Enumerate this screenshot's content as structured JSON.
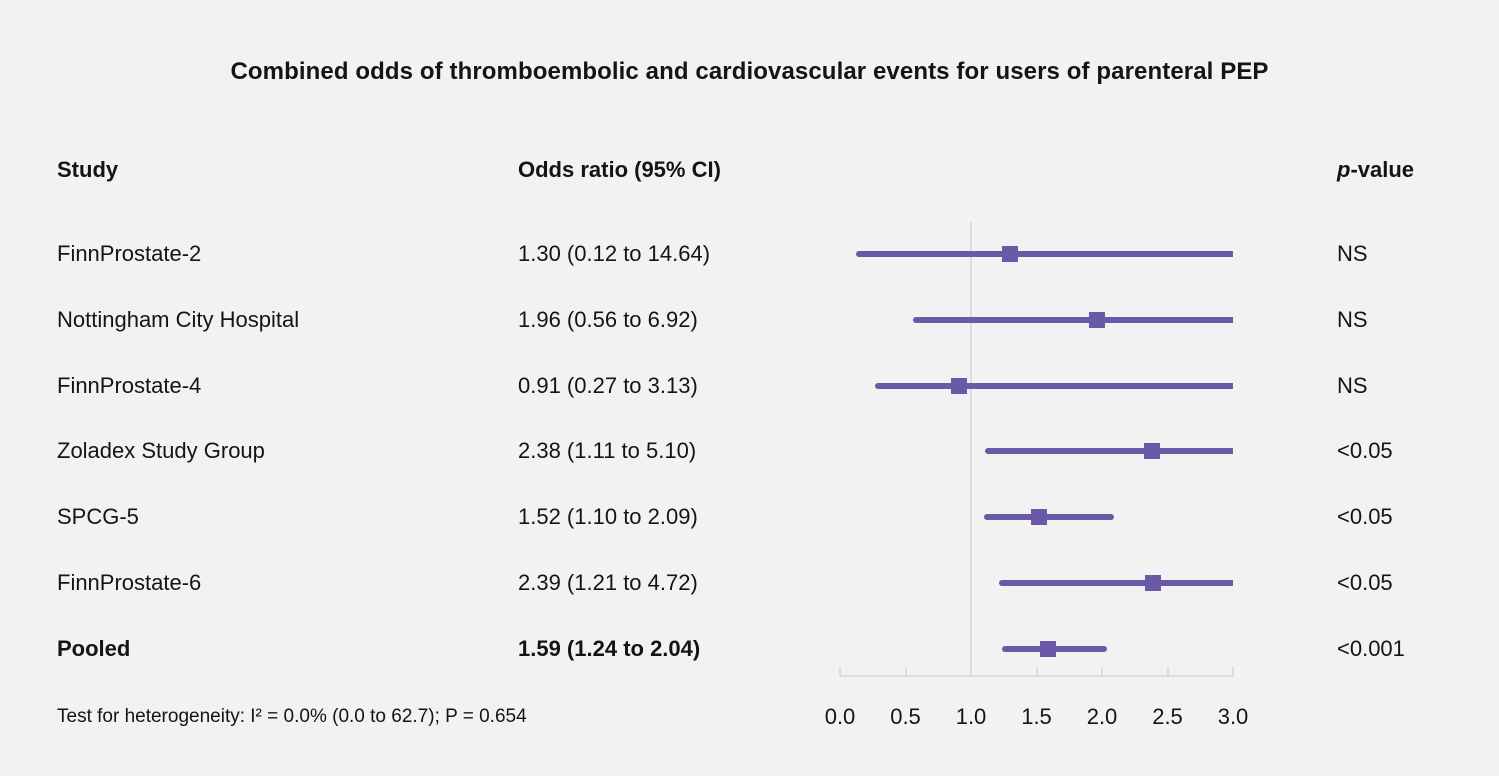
{
  "title": "Combined odds of thromboembolic and cardiovascular events for users of parenteral PEP",
  "columns": {
    "study": "Study",
    "or_ci": "Odds ratio (95% CI)",
    "p_italic": "p",
    "p_rest": "-value"
  },
  "footnote": "Test for heterogeneity: I² = 0.0% (0.0 to 62.7); P = 0.654",
  "colors": {
    "background": "#f2f2f2",
    "marker": "#6a59a6",
    "axis": "#d9dde3",
    "text": "#141414"
  },
  "chart_data": {
    "type": "forest",
    "title": "Combined odds of thromboembolic and cardiovascular events for users of parenteral PEP",
    "xlim": [
      0.0,
      3.0
    ],
    "reference_value": 1.0,
    "legend_position": "none",
    "grid": false,
    "x_ticks": [
      {
        "value": 0.0,
        "label": "0.0"
      },
      {
        "value": 0.5,
        "label": "0.5"
      },
      {
        "value": 1.0,
        "label": "1.0"
      },
      {
        "value": 1.5,
        "label": "1.5"
      },
      {
        "value": 2.0,
        "label": "2.0"
      },
      {
        "value": 2.5,
        "label": "2.5"
      },
      {
        "value": 3.0,
        "label": "3.0"
      }
    ],
    "rows": [
      {
        "study": "FinnProstate-2",
        "or": 1.3,
        "lo": 0.12,
        "hi": 14.64,
        "or_ci": "1.30 (0.12 to 14.64)",
        "p": "NS",
        "bold": false
      },
      {
        "study": "Nottingham City Hospital",
        "or": 1.96,
        "lo": 0.56,
        "hi": 6.92,
        "or_ci": "1.96 (0.56 to 6.92)",
        "p": "NS",
        "bold": false
      },
      {
        "study": "FinnProstate-4",
        "or": 0.91,
        "lo": 0.27,
        "hi": 3.13,
        "or_ci": "0.91 (0.27 to 3.13)",
        "p": "NS",
        "bold": false
      },
      {
        "study": "Zoladex Study Group",
        "or": 2.38,
        "lo": 1.11,
        "hi": 5.1,
        "or_ci": "2.38 (1.11 to 5.10)",
        "p": "<0.05",
        "bold": false
      },
      {
        "study": "SPCG-5",
        "or": 1.52,
        "lo": 1.1,
        "hi": 2.09,
        "or_ci": "1.52 (1.10 to 2.09)",
        "p": "<0.05",
        "bold": false
      },
      {
        "study": "FinnProstate-6",
        "or": 2.39,
        "lo": 1.21,
        "hi": 4.72,
        "or_ci": "2.39 (1.21 to 4.72)",
        "p": "<0.05",
        "bold": false
      },
      {
        "study": "Pooled",
        "or": 1.59,
        "lo": 1.24,
        "hi": 2.04,
        "or_ci": "1.59 (1.24 to 2.04)",
        "p": "<0.001",
        "bold": true
      }
    ]
  }
}
